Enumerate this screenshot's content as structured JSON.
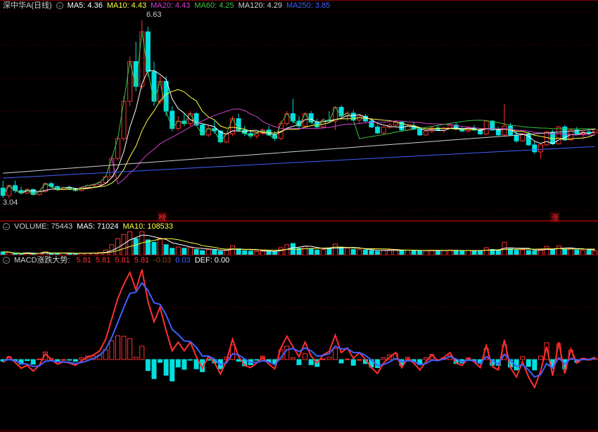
{
  "colors": {
    "bg": "#000000",
    "grid": "#400000",
    "border": "#800000",
    "up": "#ff3030",
    "down": "#00e0e0",
    "text": "#d0d0d0",
    "ma5": "#ffffff",
    "ma10": "#ffff40",
    "ma20": "#d040d0",
    "ma60": "#40c040",
    "ma120": "#d0d0d0",
    "ma250": "#4060ff",
    "macd_fast": "#ff3030",
    "macd_slow": "#4060ff",
    "macd_def": "#ffffff"
  },
  "price": {
    "title": "深中华A(日线)",
    "ma_labels": [
      {
        "k": "MA5",
        "v": "4.36",
        "c": "#ffffff"
      },
      {
        "k": "MA10",
        "v": "4.43",
        "c": "#ffff40"
      },
      {
        "k": "MA20",
        "v": "4.43",
        "c": "#d040d0"
      },
      {
        "k": "MA60",
        "v": "4.25",
        "c": "#40c040"
      },
      {
        "k": "MA120",
        "v": "4.29",
        "c": "#d0d0d0"
      },
      {
        "k": "MA250",
        "v": "3.85",
        "c": "#4060ff"
      }
    ],
    "ylim": [
      2.8,
      6.8
    ],
    "annot_high": {
      "x": 23,
      "v": 6.63
    },
    "annot_low": {
      "x": 0,
      "v": 3.04
    },
    "markers": [
      {
        "x": 26,
        "label": "榜"
      },
      {
        "x": 91,
        "label": "涨"
      }
    ],
    "candles": [
      {
        "o": 3.25,
        "h": 3.4,
        "l": 3.05,
        "c": 3.1
      },
      {
        "o": 3.1,
        "h": 3.32,
        "l": 3.04,
        "c": 3.3
      },
      {
        "o": 3.3,
        "h": 3.4,
        "l": 3.15,
        "c": 3.2
      },
      {
        "o": 3.2,
        "h": 3.28,
        "l": 3.12,
        "c": 3.15
      },
      {
        "o": 3.15,
        "h": 3.25,
        "l": 3.13,
        "c": 3.22
      },
      {
        "o": 3.22,
        "h": 3.24,
        "l": 3.1,
        "c": 3.12
      },
      {
        "o": 3.12,
        "h": 3.2,
        "l": 3.1,
        "c": 3.18
      },
      {
        "o": 3.18,
        "h": 3.36,
        "l": 3.16,
        "c": 3.34
      },
      {
        "o": 3.34,
        "h": 3.38,
        "l": 3.25,
        "c": 3.28
      },
      {
        "o": 3.28,
        "h": 3.3,
        "l": 3.2,
        "c": 3.22
      },
      {
        "o": 3.22,
        "h": 3.28,
        "l": 3.2,
        "c": 3.26
      },
      {
        "o": 3.26,
        "h": 3.3,
        "l": 3.22,
        "c": 3.24
      },
      {
        "o": 3.24,
        "h": 3.26,
        "l": 3.18,
        "c": 3.2
      },
      {
        "o": 3.2,
        "h": 3.28,
        "l": 3.18,
        "c": 3.26
      },
      {
        "o": 3.26,
        "h": 3.32,
        "l": 3.24,
        "c": 3.3
      },
      {
        "o": 3.3,
        "h": 3.34,
        "l": 3.28,
        "c": 3.32
      },
      {
        "o": 3.32,
        "h": 3.38,
        "l": 3.3,
        "c": 3.36
      },
      {
        "o": 3.36,
        "h": 3.5,
        "l": 3.34,
        "c": 3.48
      },
      {
        "o": 3.48,
        "h": 3.9,
        "l": 3.46,
        "c": 3.85
      },
      {
        "o": 3.85,
        "h": 4.3,
        "l": 3.8,
        "c": 4.25
      },
      {
        "o": 4.25,
        "h": 5.1,
        "l": 4.2,
        "c": 5.0
      },
      {
        "o": 5.0,
        "h": 5.9,
        "l": 4.9,
        "c": 5.8
      },
      {
        "o": 5.8,
        "h": 6.2,
        "l": 5.2,
        "c": 5.3
      },
      {
        "o": 5.3,
        "h": 6.63,
        "l": 5.25,
        "c": 6.4
      },
      {
        "o": 6.4,
        "h": 6.5,
        "l": 5.5,
        "c": 5.6
      },
      {
        "o": 5.6,
        "h": 5.8,
        "l": 4.9,
        "c": 5.0
      },
      {
        "o": 5.0,
        "h": 5.5,
        "l": 4.95,
        "c": 5.4
      },
      {
        "o": 5.4,
        "h": 5.5,
        "l": 4.7,
        "c": 4.8
      },
      {
        "o": 4.8,
        "h": 4.9,
        "l": 4.4,
        "c": 4.45
      },
      {
        "o": 4.45,
        "h": 4.7,
        "l": 4.4,
        "c": 4.6
      },
      {
        "o": 4.6,
        "h": 4.75,
        "l": 4.5,
        "c": 4.55
      },
      {
        "o": 4.55,
        "h": 4.8,
        "l": 4.5,
        "c": 4.75
      },
      {
        "o": 4.75,
        "h": 4.78,
        "l": 4.5,
        "c": 4.52
      },
      {
        "o": 4.52,
        "h": 4.55,
        "l": 4.3,
        "c": 4.32
      },
      {
        "o": 4.32,
        "h": 4.5,
        "l": 4.28,
        "c": 4.45
      },
      {
        "o": 4.45,
        "h": 4.6,
        "l": 4.35,
        "c": 4.4
      },
      {
        "o": 4.4,
        "h": 4.42,
        "l": 4.15,
        "c": 4.18
      },
      {
        "o": 4.18,
        "h": 4.36,
        "l": 4.15,
        "c": 4.34
      },
      {
        "o": 4.34,
        "h": 4.7,
        "l": 4.3,
        "c": 4.65
      },
      {
        "o": 4.65,
        "h": 4.75,
        "l": 4.4,
        "c": 4.42
      },
      {
        "o": 4.42,
        "h": 4.5,
        "l": 4.3,
        "c": 4.35
      },
      {
        "o": 4.35,
        "h": 4.42,
        "l": 4.25,
        "c": 4.3
      },
      {
        "o": 4.3,
        "h": 4.38,
        "l": 4.25,
        "c": 4.35
      },
      {
        "o": 4.35,
        "h": 4.45,
        "l": 4.32,
        "c": 4.42
      },
      {
        "o": 4.42,
        "h": 4.5,
        "l": 4.3,
        "c": 4.32
      },
      {
        "o": 4.32,
        "h": 4.4,
        "l": 4.2,
        "c": 4.25
      },
      {
        "o": 4.25,
        "h": 4.6,
        "l": 4.22,
        "c": 4.55
      },
      {
        "o": 4.55,
        "h": 4.8,
        "l": 4.5,
        "c": 4.75
      },
      {
        "o": 4.75,
        "h": 5.05,
        "l": 4.55,
        "c": 4.6
      },
      {
        "o": 4.6,
        "h": 4.7,
        "l": 4.45,
        "c": 4.5
      },
      {
        "o": 4.5,
        "h": 4.78,
        "l": 4.48,
        "c": 4.75
      },
      {
        "o": 4.75,
        "h": 4.8,
        "l": 4.55,
        "c": 4.58
      },
      {
        "o": 4.58,
        "h": 4.65,
        "l": 4.45,
        "c": 4.48
      },
      {
        "o": 4.48,
        "h": 4.66,
        "l": 4.44,
        "c": 4.62
      },
      {
        "o": 4.62,
        "h": 4.8,
        "l": 4.56,
        "c": 4.6
      },
      {
        "o": 4.6,
        "h": 4.9,
        "l": 4.42,
        "c": 4.88
      },
      {
        "o": 4.88,
        "h": 4.92,
        "l": 4.66,
        "c": 4.7
      },
      {
        "o": 4.7,
        "h": 4.8,
        "l": 4.6,
        "c": 4.76
      },
      {
        "o": 4.76,
        "h": 4.82,
        "l": 4.6,
        "c": 4.62
      },
      {
        "o": 4.62,
        "h": 4.72,
        "l": 4.56,
        "c": 4.7
      },
      {
        "o": 4.7,
        "h": 4.74,
        "l": 4.58,
        "c": 4.6
      },
      {
        "o": 4.6,
        "h": 4.64,
        "l": 4.46,
        "c": 4.48
      },
      {
        "o": 4.48,
        "h": 4.52,
        "l": 4.34,
        "c": 4.36
      },
      {
        "o": 4.36,
        "h": 4.5,
        "l": 4.34,
        "c": 4.48
      },
      {
        "o": 4.48,
        "h": 4.56,
        "l": 4.44,
        "c": 4.52
      },
      {
        "o": 4.52,
        "h": 4.62,
        "l": 4.48,
        "c": 4.58
      },
      {
        "o": 4.58,
        "h": 4.6,
        "l": 4.4,
        "c": 4.42
      },
      {
        "o": 4.42,
        "h": 4.52,
        "l": 4.4,
        "c": 4.5
      },
      {
        "o": 4.5,
        "h": 4.58,
        "l": 4.42,
        "c": 4.44
      },
      {
        "o": 4.44,
        "h": 4.48,
        "l": 4.3,
        "c": 4.32
      },
      {
        "o": 4.32,
        "h": 4.42,
        "l": 4.3,
        "c": 4.4
      },
      {
        "o": 4.4,
        "h": 4.5,
        "l": 4.36,
        "c": 4.46
      },
      {
        "o": 4.46,
        "h": 4.52,
        "l": 4.4,
        "c": 4.42
      },
      {
        "o": 4.42,
        "h": 4.48,
        "l": 4.36,
        "c": 4.46
      },
      {
        "o": 4.46,
        "h": 4.54,
        "l": 4.44,
        "c": 4.52
      },
      {
        "o": 4.52,
        "h": 4.56,
        "l": 4.42,
        "c": 4.44
      },
      {
        "o": 4.44,
        "h": 4.48,
        "l": 4.38,
        "c": 4.4
      },
      {
        "o": 4.4,
        "h": 4.48,
        "l": 4.38,
        "c": 4.46
      },
      {
        "o": 4.46,
        "h": 4.52,
        "l": 4.4,
        "c": 4.42
      },
      {
        "o": 4.42,
        "h": 4.46,
        "l": 4.32,
        "c": 4.34
      },
      {
        "o": 4.34,
        "h": 4.62,
        "l": 4.32,
        "c": 4.6
      },
      {
        "o": 4.6,
        "h": 4.62,
        "l": 4.4,
        "c": 4.42
      },
      {
        "o": 4.42,
        "h": 4.48,
        "l": 4.3,
        "c": 4.32
      },
      {
        "o": 4.32,
        "h": 4.95,
        "l": 4.3,
        "c": 4.5
      },
      {
        "o": 4.5,
        "h": 4.56,
        "l": 4.3,
        "c": 4.32
      },
      {
        "o": 4.32,
        "h": 4.4,
        "l": 4.16,
        "c": 4.2
      },
      {
        "o": 4.2,
        "h": 4.36,
        "l": 4.18,
        "c": 4.34
      },
      {
        "o": 4.34,
        "h": 4.38,
        "l": 4.1,
        "c": 4.12
      },
      {
        "o": 4.12,
        "h": 4.2,
        "l": 3.94,
        "c": 3.98
      },
      {
        "o": 3.98,
        "h": 4.14,
        "l": 3.85,
        "c": 4.12
      },
      {
        "o": 4.12,
        "h": 4.4,
        "l": 4.1,
        "c": 4.38
      },
      {
        "o": 4.38,
        "h": 4.42,
        "l": 4.12,
        "c": 4.14
      },
      {
        "o": 4.14,
        "h": 4.5,
        "l": 4.14,
        "c": 4.48
      },
      {
        "o": 4.48,
        "h": 4.52,
        "l": 4.2,
        "c": 4.22
      },
      {
        "o": 4.22,
        "h": 4.44,
        "l": 4.2,
        "c": 4.42
      },
      {
        "o": 4.42,
        "h": 4.48,
        "l": 4.32,
        "c": 4.34
      },
      {
        "o": 4.34,
        "h": 4.4,
        "l": 4.26,
        "c": 4.38
      },
      {
        "o": 4.38,
        "h": 4.44,
        "l": 4.34,
        "c": 4.36
      },
      {
        "o": 4.36,
        "h": 4.46,
        "l": 4.34,
        "c": 4.43
      }
    ]
  },
  "volume": {
    "labels": [
      {
        "k": "VOLUME",
        "v": "75443",
        "c": "#d0d0d0"
      },
      {
        "k": "MA5",
        "v": "71024",
        "c": "#ffffff"
      },
      {
        "k": "MA10",
        "v": "108533",
        "c": "#ffff40"
      }
    ],
    "ylim": [
      0,
      400000
    ],
    "bars": [
      60,
      55,
      40,
      35,
      30,
      32,
      34,
      58,
      40,
      35,
      36,
      34,
      30,
      36,
      38,
      40,
      50,
      90,
      180,
      280,
      350,
      395,
      280,
      395,
      260,
      220,
      280,
      180,
      120,
      140,
      120,
      140,
      100,
      80,
      100,
      90,
      70,
      90,
      160,
      110,
      80,
      70,
      66,
      70,
      74,
      60,
      130,
      180,
      200,
      120,
      150,
      110,
      90,
      100,
      120,
      190,
      130,
      120,
      100,
      96,
      90,
      82,
      68,
      88,
      92,
      98,
      80,
      86,
      84,
      72,
      78,
      88,
      82,
      84,
      90,
      82,
      74,
      82,
      80,
      70,
      130,
      100,
      80,
      220,
      110,
      86,
      96,
      82,
      74,
      100,
      150,
      95,
      160,
      105,
      120,
      90,
      84,
      86,
      75
    ]
  },
  "macd": {
    "labels": [
      {
        "k": "MACD涨跌大势",
        "v": "",
        "c": "#d0d0d0"
      },
      {
        "k": "",
        "v": "5.81",
        "c": "#ff3030"
      },
      {
        "k": "",
        "v": "5.81",
        "c": "#ff3030"
      },
      {
        "k": "",
        "v": "5.81",
        "c": "#ff3030"
      },
      {
        "k": "",
        "v": "5.81",
        "c": "#ff3030"
      },
      {
        "k": "",
        "v": "-0.03",
        "c": "#a04000"
      },
      {
        "k": "",
        "v": "0.03",
        "c": "#4060ff"
      },
      {
        "k": "DEF",
        "v": "0.00",
        "c": "#ffffff"
      }
    ],
    "ylim": [
      -1.2,
      1.6
    ],
    "fast": [
      -0.05,
      0.05,
      -0.05,
      -0.15,
      -0.1,
      -0.2,
      -0.1,
      0.1,
      0.0,
      -0.08,
      -0.04,
      -0.06,
      -0.1,
      -0.02,
      0.04,
      0.08,
      0.15,
      0.35,
      0.7,
      1.05,
      1.3,
      1.5,
      1.2,
      1.55,
      1.0,
      0.65,
      0.9,
      0.5,
      0.15,
      0.3,
      0.15,
      0.3,
      0.05,
      -0.15,
      0.05,
      -0.05,
      -0.25,
      -0.02,
      0.35,
      0.05,
      -0.1,
      -0.14,
      -0.06,
      0.04,
      -0.08,
      -0.16,
      0.2,
      0.4,
      0.22,
      0.05,
      0.3,
      0.06,
      -0.06,
      0.08,
      0.14,
      0.42,
      0.12,
      0.2,
      0.02,
      0.12,
      0.0,
      -0.14,
      -0.24,
      -0.06,
      0.04,
      0.12,
      -0.14,
      0.02,
      -0.06,
      -0.18,
      -0.04,
      0.08,
      -0.02,
      0.04,
      0.12,
      -0.06,
      -0.1,
      0.02,
      -0.04,
      -0.14,
      0.24,
      -0.12,
      -0.18,
      0.34,
      -0.14,
      -0.3,
      -0.04,
      -0.3,
      -0.48,
      -0.2,
      0.22,
      -0.28,
      0.3,
      -0.24,
      0.18,
      -0.06,
      0.02,
      0.0,
      0.04
    ],
    "slow": [
      -0.02,
      0.0,
      -0.02,
      -0.07,
      -0.08,
      -0.12,
      -0.11,
      -0.03,
      -0.02,
      -0.04,
      -0.04,
      -0.05,
      -0.07,
      -0.05,
      -0.02,
      0.02,
      0.07,
      0.18,
      0.38,
      0.64,
      0.9,
      1.14,
      1.16,
      1.32,
      1.19,
      0.98,
      0.95,
      0.77,
      0.52,
      0.43,
      0.32,
      0.31,
      0.21,
      0.06,
      0.06,
      0.01,
      -0.09,
      -0.06,
      0.1,
      0.08,
      0.01,
      -0.05,
      -0.05,
      -0.02,
      -0.04,
      -0.09,
      0.03,
      0.17,
      0.19,
      0.14,
      0.2,
      0.15,
      0.06,
      0.07,
      0.1,
      0.23,
      0.18,
      0.19,
      0.12,
      0.12,
      0.07,
      -0.01,
      -0.1,
      -0.09,
      -0.04,
      0.02,
      -0.04,
      -0.02,
      -0.03,
      -0.09,
      -0.07,
      -0.01,
      -0.02,
      0.01,
      0.05,
      0.01,
      -0.04,
      -0.01,
      -0.02,
      -0.07,
      0.05,
      -0.02,
      -0.08,
      0.09,
      -0.01,
      -0.12,
      -0.09,
      -0.18,
      -0.3,
      -0.26,
      -0.07,
      -0.15,
      0.03,
      -0.08,
      0.02,
      -0.01,
      0.0,
      0.0,
      0.02
    ],
    "hist": [
      -0.03,
      0.05,
      -0.03,
      -0.08,
      -0.02,
      -0.08,
      0.01,
      0.13,
      0.02,
      -0.04,
      0.0,
      -0.01,
      -0.03,
      0.03,
      0.06,
      0.06,
      0.08,
      0.17,
      0.32,
      0.41,
      0.4,
      0.36,
      0.04,
      0.23,
      -0.19,
      -0.33,
      -0.05,
      -0.27,
      -0.37,
      -0.13,
      -0.17,
      -0.01,
      -0.16,
      -0.21,
      -0.01,
      -0.06,
      -0.16,
      0.04,
      0.25,
      -0.03,
      -0.11,
      -0.09,
      -0.01,
      0.06,
      -0.04,
      -0.07,
      0.17,
      0.23,
      0.03,
      -0.09,
      0.1,
      -0.09,
      -0.12,
      0.01,
      0.04,
      0.19,
      -0.06,
      0.01,
      -0.1,
      0.0,
      -0.07,
      -0.13,
      -0.14,
      0.03,
      0.08,
      0.1,
      -0.1,
      0.04,
      -0.03,
      -0.09,
      0.03,
      0.09,
      0.0,
      0.03,
      0.07,
      -0.07,
      -0.06,
      0.03,
      -0.02,
      -0.07,
      0.19,
      -0.1,
      -0.1,
      0.25,
      -0.13,
      -0.18,
      0.05,
      -0.12,
      -0.18,
      0.06,
      0.29,
      -0.13,
      0.27,
      -0.16,
      0.16,
      -0.05,
      0.02,
      0.0,
      0.02
    ]
  }
}
